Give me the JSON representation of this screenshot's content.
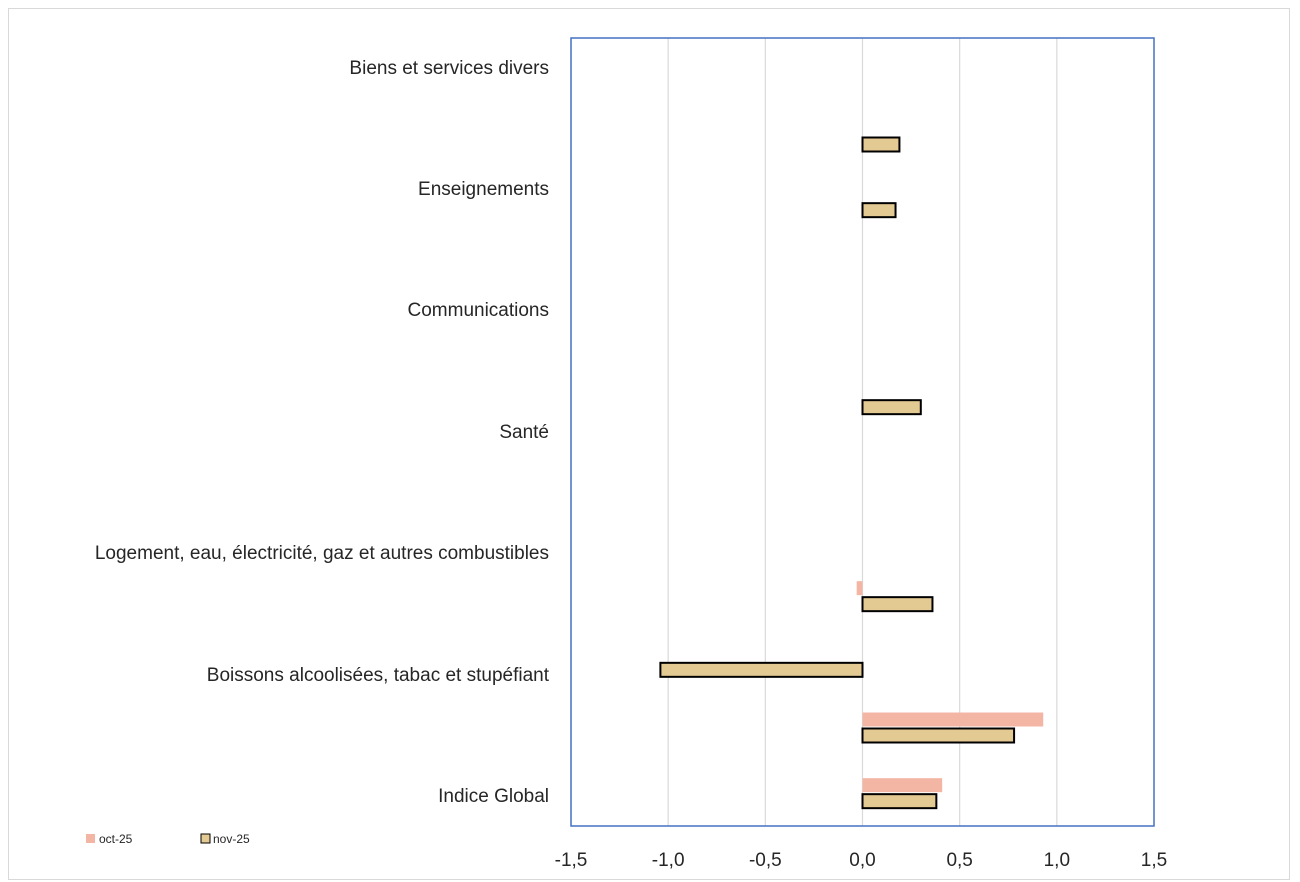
{
  "chart_data": {
    "type": "bar",
    "orientation": "horizontal",
    "categories": [
      "Indice Global",
      "",
      "Boissons alcoolisées, tabac et stupéfiant",
      "",
      "Logement, eau, électricité, gaz et autres combustibles",
      "",
      "Santé",
      "",
      "Communications",
      "",
      "Enseignements",
      "Biens et services divers"
    ],
    "category_positions": [
      0,
      1,
      2,
      3,
      4,
      5,
      6,
      7,
      8,
      9,
      10,
      11
    ],
    "series": [
      {
        "name": "oct-25",
        "values": [
          0.41,
          0.93,
          null,
          -0.03,
          null,
          null,
          null,
          null,
          null,
          null,
          null,
          null
        ],
        "color": "#f4b6a4"
      },
      {
        "name": "nov-25",
        "values": [
          0.38,
          0.78,
          -1.04,
          0.36,
          null,
          null,
          0.3,
          null,
          null,
          0.17,
          0.19,
          null
        ],
        "color": "#e3c992"
      }
    ],
    "xlim": [
      -1.5,
      1.5
    ],
    "xticks": [
      "-1,5",
      "-1,0",
      "-0,5",
      "0,0",
      "0,5",
      "1,0",
      "1,5"
    ],
    "xtick_values": [
      -1.5,
      -1.0,
      -0.5,
      0.0,
      0.5,
      1.0,
      1.5
    ],
    "grid": true,
    "legend_position": "bottom-left",
    "title": "",
    "xlabel": "",
    "ylabel": ""
  },
  "labels": {
    "cat_indice": "Indice Global",
    "cat_boissons": "Boissons alcoolisées, tabac et stupéfiant",
    "cat_logement": "Logement, eau, électricité, gaz et autres combustibles",
    "cat_sante": "Santé",
    "cat_communications": "Communications",
    "cat_enseignements": "Enseignements",
    "cat_biens": "Biens et services divers"
  },
  "legend": {
    "oct_label": "oct-25",
    "nov_label": "nov-25"
  },
  "colors": {
    "plot_border": "#4472c4",
    "gridline": "#d9d9d9",
    "oct": "#f4b6a4",
    "nov": "#e3c992",
    "nov_border": "#000000"
  }
}
